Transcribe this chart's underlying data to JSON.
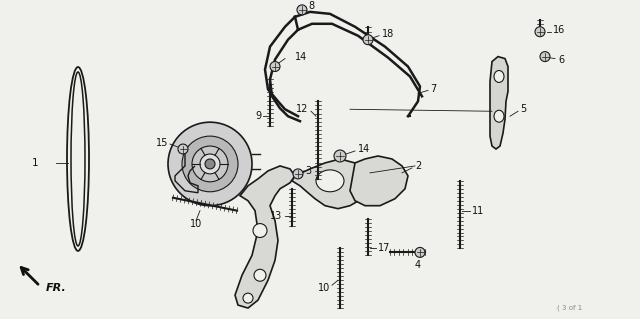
{
  "bg_color": "#f0f0ec",
  "line_color": "#1a1a1a",
  "figsize": [
    6.4,
    3.19
  ],
  "dpi": 100,
  "watermark": "( 3 of 1",
  "label_fontsize": 7.0,
  "label_color": "#111111"
}
